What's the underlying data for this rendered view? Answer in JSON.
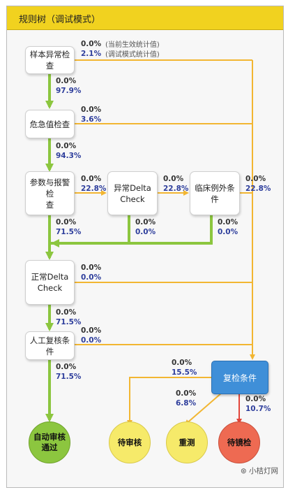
{
  "header": {
    "title": "规则树（调试模式）"
  },
  "legend": {
    "effective": "(当前生效统计值)",
    "debug": "(调试模式统计值)"
  },
  "nodes": {
    "sample": "样本异常检查",
    "critical": "危急值检查",
    "param_line1": "参数与报警检",
    "param_line2": "查",
    "delta_abn_line1": "异常Delta",
    "delta_abn_line2": "Check",
    "clinical": "临床例外条件",
    "delta_norm_line1": "正常Delta",
    "delta_norm_line2": "Check",
    "manual": "人工复核条件",
    "recheck": "复检条件",
    "auto_line1": "自动审核",
    "auto_line2": "通过",
    "pending_review": "待审核",
    "retest": "重测",
    "pending_microscopy": "待镜检"
  },
  "stats": {
    "sample_right_a": "0.0%",
    "sample_right_b": "2.1%",
    "sample_down_a": "0.0%",
    "sample_down_b": "97.9%",
    "critical_right_a": "0.0%",
    "critical_right_b": "3.6%",
    "critical_down_a": "0.0%",
    "critical_down_b": "94.3%",
    "param_right_a": "0.0%",
    "param_right_b": "22.8%",
    "delta_abn_right_a": "0.0%",
    "delta_abn_right_b": "22.8%",
    "clinical_right_a": "0.0%",
    "clinical_right_b": "22.8%",
    "param_down_a": "0.0%",
    "param_down_b": "71.5%",
    "delta_abn_down_a": "0.0%",
    "delta_abn_down_b": "0.0%",
    "clinical_down_a": "0.0%",
    "clinical_down_b": "0.0%",
    "delta_norm_right_a": "0.0%",
    "delta_norm_right_b": "0.0%",
    "delta_norm_down_a": "0.0%",
    "delta_norm_down_b": "71.5%",
    "manual_right_a": "0.0%",
    "manual_right_b": "0.0%",
    "manual_down_a": "0.0%",
    "manual_down_b": "71.5%",
    "recheck_review_a": "0.0%",
    "recheck_review_b": "15.5%",
    "recheck_retest_a": "0.0%",
    "recheck_retest_b": "6.8%",
    "recheck_micro_a": "0.0%",
    "recheck_micro_b": "10.7%"
  },
  "colors": {
    "green": "#8cc63f",
    "orange": "#f2b632",
    "red": "#e2453a",
    "yellow_fill": "#f6ea6a",
    "red_fill": "#ee6a52",
    "green_fill": "#8cc63f"
  },
  "watermark": "小桔灯网"
}
